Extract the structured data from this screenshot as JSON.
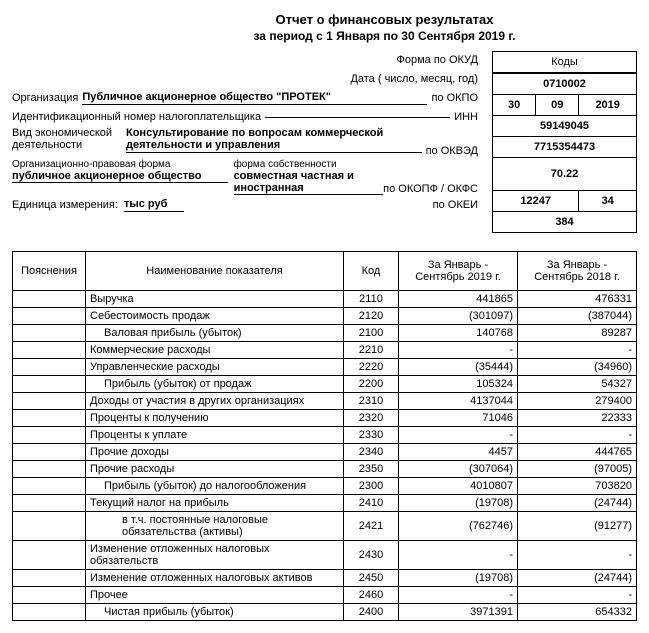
{
  "titles": {
    "line1": "Отчет о финансовых результатах",
    "line2": "за период с 1 Января по 30 Сентября 2019 г."
  },
  "header": {
    "form_okud_label": "Форма по ОКУД",
    "date_label": "Дата ( число, месяц, год)",
    "org_label": "Организация",
    "org_value": "Публичное акционерное общество \"ПРОТЕК\"",
    "org_code_label": "по ОКПО",
    "inn_label": "Идентификационный номер налогоплательщика",
    "inn_code_label": "ИНН",
    "activity_label": "Вид экономической деятельности",
    "activity_value": "Консультирование по вопросам коммерческой деятельности и управления",
    "activity_code_label": "по ОКВЭД",
    "legal_label": "Организационно-правовая форма",
    "legal_value": "публичное акционерное общество",
    "ownership_label": "форма собственности",
    "ownership_value": "совместная частная и иностранная",
    "legal_code_label": "по ОКОПФ / ОКФС",
    "unit_label": "Единица измерения:",
    "unit_value": "тыс руб",
    "unit_code_label": "по ОКЕИ"
  },
  "codes": {
    "kody": "Коды",
    "okud": "0710002",
    "date_d": "30",
    "date_m": "09",
    "date_y": "2019",
    "okpo": "59149045",
    "inn": "7715354473",
    "okved": "70.22",
    "okopf": "12247",
    "okfs": "34",
    "okei": "384"
  },
  "table": {
    "headers": {
      "expl": "Пояснения",
      "name": "Наименование показателя",
      "code": "Код",
      "p1": "За Январь - Сентябрь 2019 г.",
      "p2": "За Январь - Сентябрь 2018 г."
    },
    "rows": [
      {
        "name": "Выручка",
        "code": "2110",
        "v1": "441865",
        "v2": "476331",
        "indent": 0
      },
      {
        "name": "Себестоимость продаж",
        "code": "2120",
        "v1": "(301097)",
        "v2": "(387044)",
        "indent": 0
      },
      {
        "name": "Валовая прибыль (убыток)",
        "code": "2100",
        "v1": "140768",
        "v2": "89287",
        "indent": 1
      },
      {
        "name": "Коммерческие расходы",
        "code": "2210",
        "v1": "-",
        "v2": "-",
        "indent": 0
      },
      {
        "name": "Управленческие расходы",
        "code": "2220",
        "v1": "(35444)",
        "v2": "(34960)",
        "indent": 0
      },
      {
        "name": "Прибыль (убыток) от продаж",
        "code": "2200",
        "v1": "105324",
        "v2": "54327",
        "indent": 1
      },
      {
        "name": "Доходы от участия в других организациях",
        "code": "2310",
        "v1": "4137044",
        "v2": "279400",
        "indent": 0
      },
      {
        "name": "Проценты к получению",
        "code": "2320",
        "v1": "71046",
        "v2": "22333",
        "indent": 0
      },
      {
        "name": "Проценты к уплате",
        "code": "2330",
        "v1": "-",
        "v2": "-",
        "indent": 0
      },
      {
        "name": "Прочие доходы",
        "code": "2340",
        "v1": "4457",
        "v2": "444765",
        "indent": 0
      },
      {
        "name": "Прочие расходы",
        "code": "2350",
        "v1": "(307064)",
        "v2": "(97005)",
        "indent": 0
      },
      {
        "name": "Прибыль (убыток) до налогообложения",
        "code": "2300",
        "v1": "4010807",
        "v2": "703820",
        "indent": 1
      },
      {
        "name": "Текущий налог на прибыль",
        "code": "2410",
        "v1": "(19708)",
        "v2": "(24744)",
        "indent": 0
      },
      {
        "name": "в т.ч. постоянные налоговые обязательства (активы)",
        "code": "2421",
        "v1": "(762746)",
        "v2": "(91277)",
        "indent": 2
      },
      {
        "name": "Изменение отложенных налоговых обязательств",
        "code": "2430",
        "v1": "-",
        "v2": "-",
        "indent": 0
      },
      {
        "name": "Изменение отложенных налоговых активов",
        "code": "2450",
        "v1": "(19708)",
        "v2": "(24744)",
        "indent": 0
      },
      {
        "name": "Прочее",
        "code": "2460",
        "v1": "-",
        "v2": "-",
        "indent": 0
      },
      {
        "name": "Чистая прибыль (убыток)",
        "code": "2400",
        "v1": "3971391",
        "v2": "654332",
        "indent": 1
      }
    ]
  }
}
